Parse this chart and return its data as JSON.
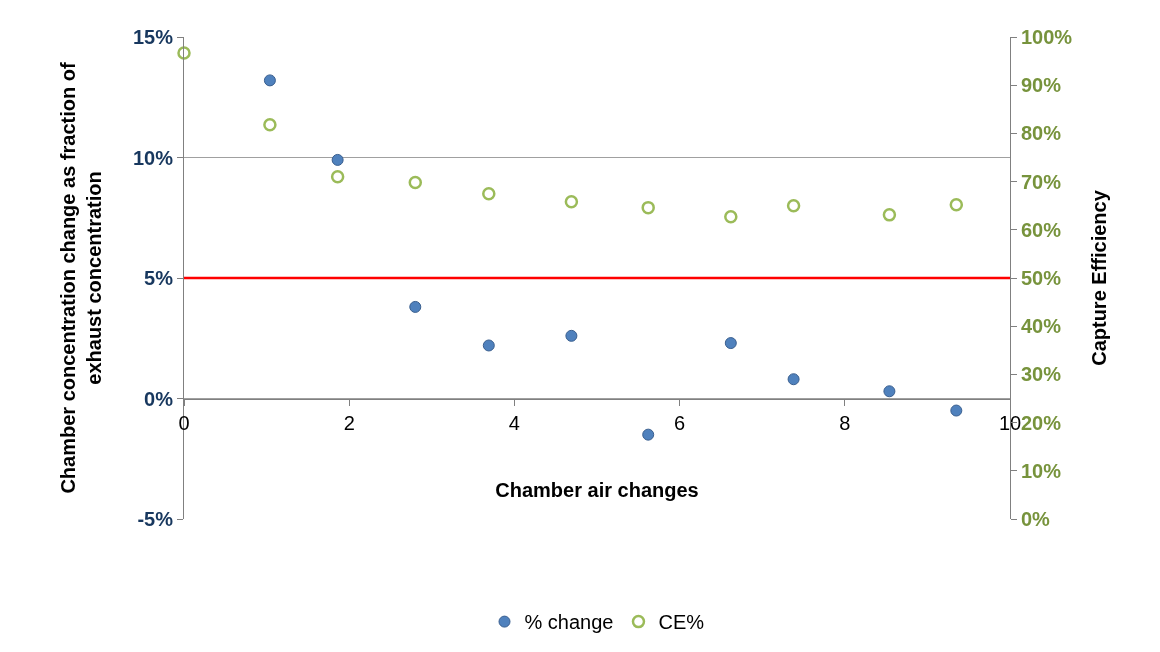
{
  "chart_data": {
    "type": "scatter",
    "xlabel": "Chamber air changes",
    "ylabel": "Chamber concentration change as fraction of\nexhaust concentration",
    "y2label": "Capture Efficiency",
    "series": [
      {
        "name": "% change",
        "color": "#4f81bd",
        "x": [
          1.04,
          1.86,
          2.8,
          3.69,
          4.69,
          5.62,
          6.62,
          7.38,
          8.54,
          9.35
        ],
        "values": [
          13.2,
          9.9,
          3.8,
          2.2,
          2.6,
          -1.5,
          2.3,
          0.8,
          0.3,
          -0.5
        ]
      },
      {
        "name": "CE%",
        "color": "#9bbb59",
        "axis": "y2",
        "x": [
          0,
          1.04,
          1.86,
          2.8,
          3.69,
          4.69,
          5.62,
          6.62,
          7.38,
          8.54,
          9.35
        ],
        "values": [
          96.7,
          81.8,
          71.0,
          69.8,
          67.5,
          65.8,
          64.6,
          62.7,
          65.0,
          63.1,
          65.2
        ]
      }
    ],
    "xlim": [
      0,
      10
    ],
    "xticks": [
      0,
      2,
      4,
      6,
      8,
      10
    ],
    "ylim": [
      -5,
      15
    ],
    "yticks": [
      {
        "value": -5,
        "label": "-5%"
      },
      {
        "value": 0,
        "label": "0%"
      },
      {
        "value": 5,
        "label": "5%"
      },
      {
        "value": 10,
        "label": "10%"
      },
      {
        "value": 15,
        "label": "15%"
      }
    ],
    "y2lim": [
      0,
      100
    ],
    "y2ticks": [
      {
        "value": 0,
        "label": "0%"
      },
      {
        "value": 10,
        "label": "10%"
      },
      {
        "value": 20,
        "label": "20%"
      },
      {
        "value": 30,
        "label": "30%"
      },
      {
        "value": 40,
        "label": "40%"
      },
      {
        "value": 50,
        "label": "50%"
      },
      {
        "value": 60,
        "label": "60%"
      },
      {
        "value": 70,
        "label": "70%"
      },
      {
        "value": 80,
        "label": "80%"
      },
      {
        "value": 90,
        "label": "90%"
      },
      {
        "value": 100,
        "label": "100%"
      }
    ],
    "ref_lines": [
      {
        "axis": "y",
        "value": 5,
        "color": "#ff0000",
        "line_style": "solid"
      }
    ],
    "grid": "y",
    "legend": "bottom",
    "marker": "circle"
  }
}
